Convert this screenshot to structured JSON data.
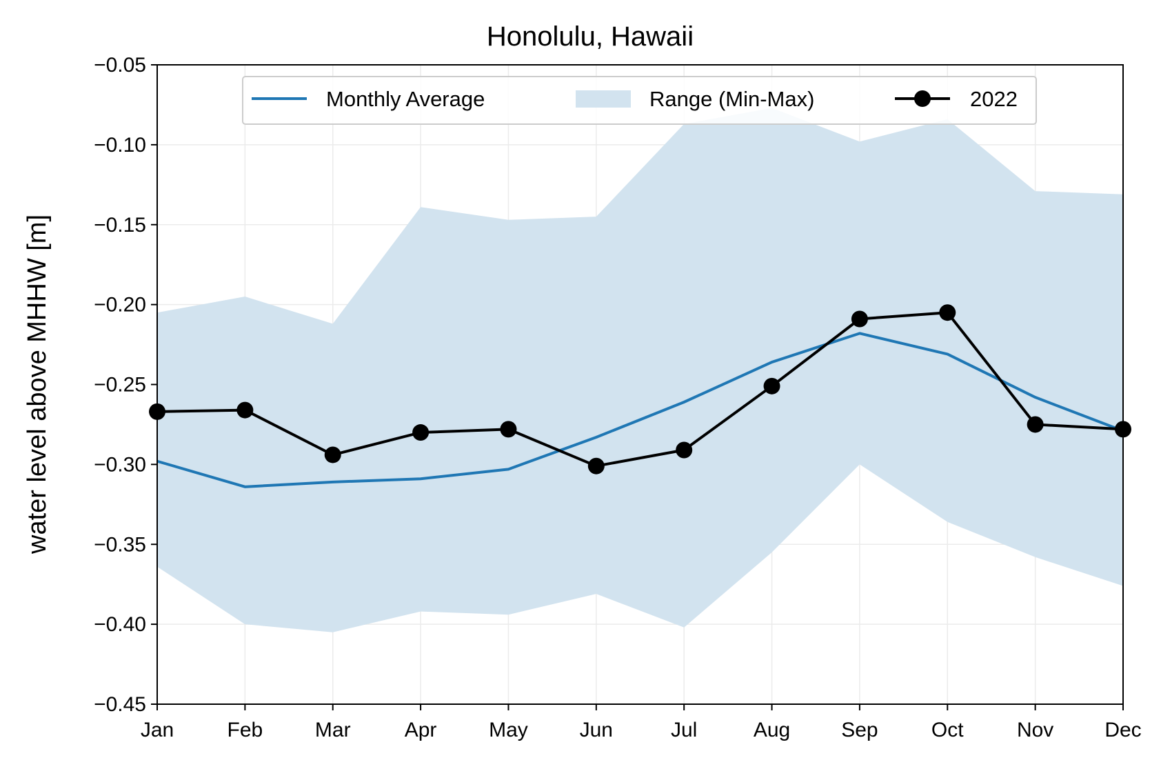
{
  "chart_data": {
    "type": "line",
    "title": "Honolulu, Hawaii",
    "xlabel": "",
    "ylabel": "water level above MHHW [m]",
    "categories": [
      "Jan",
      "Feb",
      "Mar",
      "Apr",
      "May",
      "Jun",
      "Jul",
      "Aug",
      "Sep",
      "Oct",
      "Nov",
      "Dec"
    ],
    "ylim": [
      -0.45,
      -0.05
    ],
    "yticks": [
      -0.05,
      -0.1,
      -0.15,
      -0.2,
      -0.25,
      -0.3,
      -0.35,
      -0.4,
      -0.45
    ],
    "ytick_labels": [
      "−0.05",
      "−0.10",
      "−0.15",
      "−0.20",
      "−0.25",
      "−0.30",
      "−0.35",
      "−0.40",
      "−0.45"
    ],
    "grid": true,
    "legend_placement": "top-center",
    "series": [
      {
        "name": "Monthly Average",
        "kind": "line",
        "color": "#1f77b4",
        "values": [
          -0.298,
          -0.314,
          -0.311,
          -0.309,
          -0.303,
          -0.283,
          -0.261,
          -0.236,
          -0.218,
          -0.231,
          -0.258,
          -0.279
        ]
      },
      {
        "name": "Range (Min-Max)",
        "kind": "band",
        "color": "#d2e3ef",
        "min": [
          -0.364,
          -0.4,
          -0.405,
          -0.392,
          -0.394,
          -0.381,
          -0.402,
          -0.355,
          -0.3,
          -0.336,
          -0.358,
          -0.376
        ],
        "max": [
          -0.205,
          -0.195,
          -0.212,
          -0.139,
          -0.147,
          -0.145,
          -0.087,
          -0.077,
          -0.098,
          -0.084,
          -0.129,
          -0.131
        ]
      },
      {
        "name": "2022",
        "kind": "line-marker",
        "color": "#000000",
        "values": [
          -0.267,
          -0.266,
          -0.294,
          -0.28,
          -0.278,
          -0.301,
          -0.291,
          -0.251,
          -0.209,
          -0.205,
          -0.275,
          -0.278
        ]
      }
    ]
  }
}
